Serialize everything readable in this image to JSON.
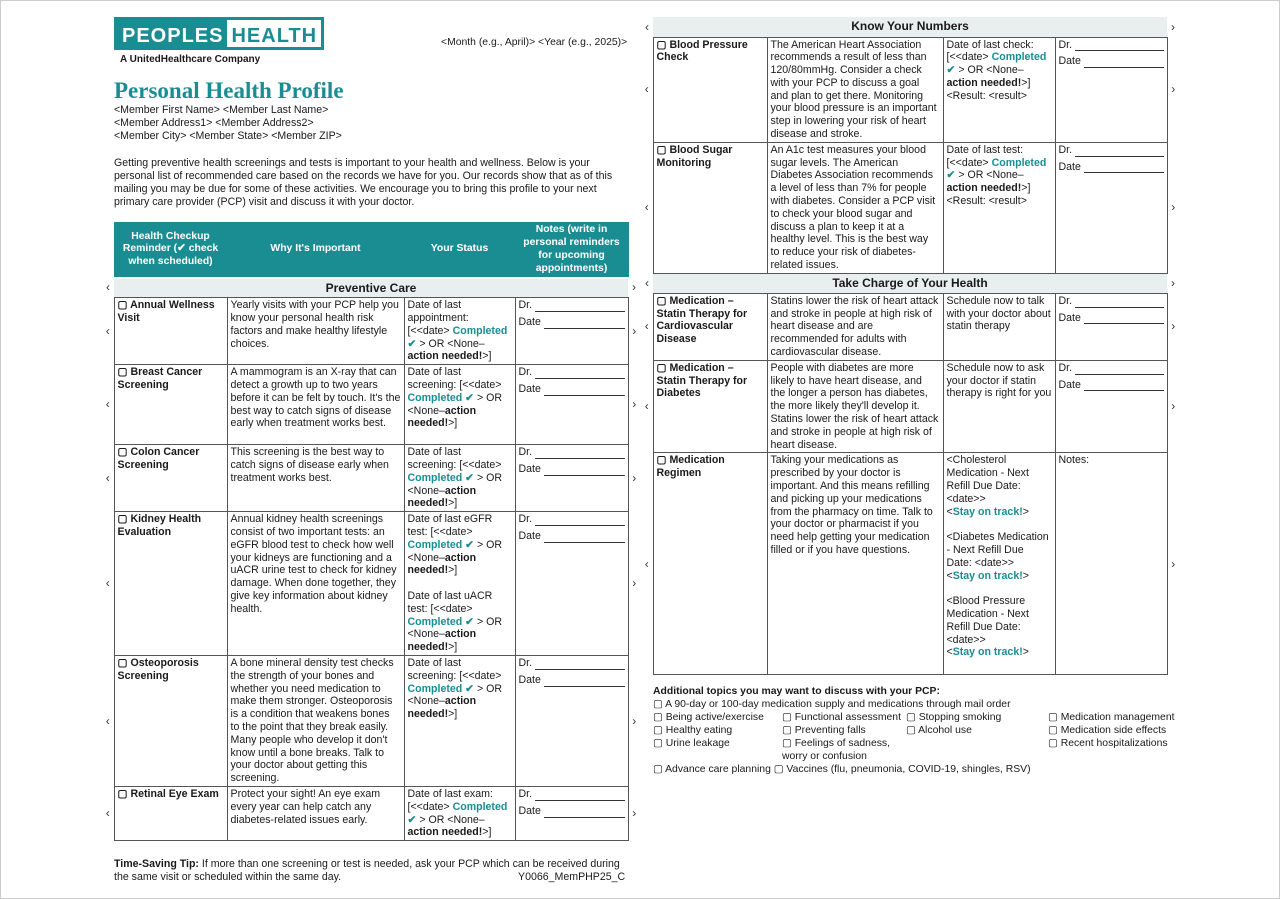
{
  "logo": {
    "word1": "PEOPLES",
    "word2": "HEALTH",
    "tagline": "A UnitedHealthcare Company"
  },
  "date_placeholder": "<Month (e.g., April)> <Year (e.g., 2025)>",
  "title": "Personal Health Profile",
  "address": [
    "<Member First Name> <Member Last Name>",
    "<Member Address1> <Member Address2>",
    "<Member City> <Member State> <Member ZIP>"
  ],
  "intro": "Getting preventive health screenings and tests is important to your health and wellness. Below is your personal list of recommended care based on the records we have for you. Our records show that as of this mailing you may be due for some of these activities. We encourage you to bring this profile to your next primary care provider (PCP) visit and discuss it with your doctor.",
  "table_headers": [
    "Health Checkup Reminder (✔ check when scheduled)",
    "Why It's Important",
    "Your Status",
    "Notes (write in personal reminders for upcoming appointments)"
  ],
  "note_labels": {
    "dr": "Dr.",
    "date": "Date",
    "notes": "Notes:"
  },
  "checkbox": "▢",
  "colors": {
    "teal": "#1a8d93",
    "section_bg": "#e9eeee"
  },
  "left_sections": [
    {
      "title": "Preventive Care",
      "rows": [
        {
          "name": "Annual Wellness Visit",
          "why": "Yearly visits with your PCP help you know your personal health risk factors and make healthy lifestyle choices.",
          "status": [
            [
              "n",
              "Date of last appointment: [<<date> "
            ],
            [
              "c",
              "Completed ✔"
            ],
            [
              "n",
              " > OR <None–"
            ],
            [
              "b",
              "action needed!"
            ],
            [
              "n",
              ">]"
            ]
          ]
        },
        {
          "name": "Breast Cancer Screening",
          "why": "A mammogram is an X-ray that can detect a growth up to two years before it can be felt by touch. It's the best way to catch signs of disease early when treatment works best.",
          "status": [
            [
              "n",
              "Date of last screening: [<<date> "
            ],
            [
              "c",
              "Completed ✔"
            ],
            [
              "n",
              " > OR <None–"
            ],
            [
              "b",
              "action needed!"
            ],
            [
              "n",
              ">]"
            ]
          ]
        },
        {
          "name": "Colon Cancer Screening",
          "why": "This screening is the best way to catch signs of disease early when treatment works best.",
          "status": [
            [
              "n",
              "Date of last screening: [<<date> "
            ],
            [
              "c",
              "Completed ✔"
            ],
            [
              "n",
              " > OR <None–"
            ],
            [
              "b",
              "action needed!"
            ],
            [
              "n",
              ">]"
            ]
          ]
        },
        {
          "name": "Kidney Health Evaluation",
          "why": "Annual kidney health screenings consist of two important tests: an eGFR blood test to check how well your kidneys are functioning and a uACR urine test to check for kidney damage. When done together, they give key information about kidney health.",
          "status": [
            [
              "n",
              "Date of last eGFR test: [<<date> "
            ],
            [
              "c",
              "Completed ✔"
            ],
            [
              "n",
              " > OR <None–"
            ],
            [
              "b",
              "action needed!"
            ],
            [
              "n",
              ">]\n\nDate of last uACR test: [<<date> "
            ],
            [
              "c",
              "Completed ✔"
            ],
            [
              "n",
              " > OR <None–"
            ],
            [
              "b",
              "action needed!"
            ],
            [
              "n",
              ">]"
            ]
          ]
        },
        {
          "name": "Osteoporosis Screening",
          "why": "A bone mineral density test checks the strength of your bones and whether you need medication to make them stronger. Osteoporosis is a condition that weakens bones to the point that they break easily. Many people who develop it don't know until a bone breaks. Talk to your doctor about getting this screening.",
          "status": [
            [
              "n",
              "Date of last screening: [<<date> "
            ],
            [
              "c",
              "Completed ✔"
            ],
            [
              "n",
              " > OR <None–"
            ],
            [
              "b",
              "action needed!"
            ],
            [
              "n",
              ">]"
            ]
          ]
        },
        {
          "name": "Retinal Eye Exam",
          "why": "Protect your sight! An eye exam every year can help catch any diabetes-related issues early.",
          "status": [
            [
              "n",
              "Date of last exam: [<<date> "
            ],
            [
              "c",
              "Completed ✔"
            ],
            [
              "n",
              " > OR <None–"
            ],
            [
              "b",
              "action needed!"
            ],
            [
              "n",
              ">]"
            ]
          ]
        }
      ]
    }
  ],
  "right_sections": [
    {
      "title": "Know Your Numbers",
      "rows": [
        {
          "name": "Blood Pressure Check",
          "why": "The American Heart Association recommends a result of less than 120/80mmHg. Consider a check with your PCP to discuss a goal and plan to get there. Monitoring your blood pressure is an important step in lowering your risk of heart disease and stroke.",
          "status": [
            [
              "n",
              "Date of last check: [<<date> "
            ],
            [
              "c",
              "Completed ✔"
            ],
            [
              "n",
              " > OR <None–"
            ],
            [
              "b",
              "action needed!"
            ],
            [
              "n",
              ">]\n<Result: <result>"
            ]
          ]
        },
        {
          "name": "Blood Sugar Monitoring",
          "why": "An A1c test measures your blood sugar levels. The American Diabetes Association recommends a level of less than 7% for people with diabetes. Consider a PCP visit to check your blood sugar and discuss a plan to keep it at a healthy level. This is the best way to reduce your risk of diabetes-related issues.",
          "status": [
            [
              "n",
              "Date of last test: [<<date> "
            ],
            [
              "c",
              "Completed ✔"
            ],
            [
              "n",
              " > OR <None–"
            ],
            [
              "b",
              "action needed!"
            ],
            [
              "n",
              ">]\n<Result: <result>"
            ]
          ]
        }
      ]
    },
    {
      "title": "Take Charge of Your Health",
      "rows": [
        {
          "name": "Medication – Statin Therapy for Cardiovascular Disease",
          "why": "Statins lower the risk of heart attack and stroke in people at high risk of heart disease and are recommended for adults with cardiovascular disease.",
          "status": [
            [
              "n",
              "Schedule now to talk with your doctor about statin therapy"
            ]
          ]
        },
        {
          "name": "Medication – Statin Therapy for Diabetes",
          "why": "People with diabetes are more likely to have heart disease, and the longer a person has diabetes, the more likely they'll develop it. Statins lower the risk of heart attack and stroke in people at high risk of heart disease.",
          "status": [
            [
              "n",
              "Schedule now to ask your doctor if statin therapy is right for you"
            ]
          ]
        },
        {
          "name": "Medication Regimen",
          "notes_only": true,
          "why": "Taking your medications as prescribed by your doctor is important. And this means refilling and picking up your medications from the pharmacy on time. Talk to your doctor or pharmacist if you need help getting your medication filled or if you have questions.",
          "status": [
            [
              "n",
              "<Cholesterol Medication - Next Refill Due Date: <date>>\n<"
            ],
            [
              "c",
              "Stay on track!"
            ],
            [
              "n",
              ">\n\n<Diabetes Medication - Next Refill Due Date: <date>>\n<"
            ],
            [
              "c",
              "Stay on track!"
            ],
            [
              "n",
              ">\n\n<Blood Pressure Medication - Next Refill Due Date: <date>>\n<"
            ],
            [
              "c",
              "Stay on track!"
            ],
            [
              "n",
              ">"
            ]
          ]
        }
      ]
    }
  ],
  "topics": {
    "heading": "Additional topics you may want to discuss with your PCP:",
    "first": "A 90-day or 100-day medication supply and medications through mail order",
    "grid": [
      "Being active/exercise",
      "Functional assessment",
      "Stopping smoking",
      "Medication management",
      "Healthy eating",
      "Preventing falls",
      "Alcohol use",
      "Medication side effects",
      "Urine leakage",
      "Feelings of sadness, worry or confusion",
      "",
      "Recent hospitalizations"
    ],
    "last": [
      "Advance care planning",
      "Vaccines (flu, pneumonia, COVID-19, shingles, RSV)"
    ]
  },
  "tip": {
    "label": "Time-Saving Tip:",
    "text": " If more than one screening or test is needed, ask your PCP which can be received during the same visit or scheduled within the same day."
  },
  "code": "Y0066_MemPHP25_C"
}
